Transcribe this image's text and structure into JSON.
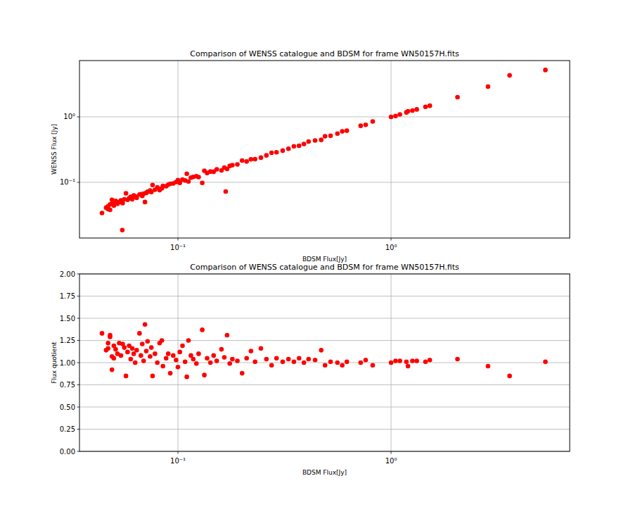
{
  "chart_data": [
    {
      "type": "scatter",
      "title": "Comparison of WENSS catalogue and BDSM for frame WN50157H.fits",
      "x_label": "BDSM Flux[Jy]",
      "y_label": "WENSS Flux [Jy]",
      "log": true,
      "grid": true,
      "color": "#ff0000",
      "marker": "circle",
      "xlim": [
        0.0345,
        6.89
      ],
      "ylim": [
        0.0141,
        7.25
      ],
      "xticks": [
        {
          "value": 0.1,
          "label": "10⁻¹"
        },
        {
          "value": 1,
          "label": "10⁰"
        }
      ],
      "yticks": [
        {
          "value": 0.1,
          "label": "10⁻¹"
        },
        {
          "value": 1,
          "label": "10⁰"
        }
      ],
      "x": [
        0.044,
        0.046,
        0.047,
        0.047,
        0.048,
        0.048,
        0.049,
        0.049,
        0.05,
        0.05,
        0.051,
        0.052,
        0.053,
        0.054,
        0.0548,
        0.055,
        0.056,
        0.057,
        0.058,
        0.059,
        0.06,
        0.061,
        0.062,
        0.063,
        0.064,
        0.066,
        0.067,
        0.068,
        0.069,
        0.07,
        0.071,
        0.072,
        0.074,
        0.075,
        0.076,
        0.078,
        0.08,
        0.082,
        0.084,
        0.085,
        0.088,
        0.09,
        0.092,
        0.095,
        0.098,
        0.1,
        0.102,
        0.105,
        0.108,
        0.11,
        0.112,
        0.115,
        0.118,
        0.122,
        0.125,
        0.13,
        0.133,
        0.137,
        0.142,
        0.147,
        0.152,
        0.16,
        0.165,
        0.1675,
        0.17,
        0.175,
        0.18,
        0.19,
        0.2,
        0.21,
        0.22,
        0.23,
        0.245,
        0.26,
        0.275,
        0.29,
        0.31,
        0.33,
        0.35,
        0.37,
        0.39,
        0.41,
        0.44,
        0.47,
        0.49,
        0.52,
        0.56,
        0.59,
        0.62,
        0.72,
        0.76,
        0.82,
        1.0,
        1.05,
        1.1,
        1.18,
        1.2,
        1.26,
        1.32,
        1.45,
        1.52,
        2.05,
        2.85,
        3.6,
        5.3
      ],
      "values": [
        0.034,
        0.041,
        0.043,
        0.039,
        0.046,
        0.038,
        0.054,
        0.047,
        0.049,
        0.044,
        0.052,
        0.047,
        0.05,
        0.053,
        0.0186,
        0.048,
        0.055,
        0.068,
        0.054,
        0.057,
        0.06,
        0.055,
        0.063,
        0.061,
        0.058,
        0.065,
        0.066,
        0.062,
        0.067,
        0.05,
        0.069,
        0.072,
        0.075,
        0.071,
        0.091,
        0.077,
        0.084,
        0.076,
        0.081,
        0.088,
        0.087,
        0.092,
        0.095,
        0.096,
        0.101,
        0.108,
        0.098,
        0.11,
        0.107,
        0.135,
        0.103,
        0.118,
        0.121,
        0.124,
        0.12,
        0.098,
        0.15,
        0.139,
        0.146,
        0.145,
        0.158,
        0.152,
        0.168,
        0.0724,
        0.16,
        0.178,
        0.183,
        0.188,
        0.215,
        0.208,
        0.225,
        0.226,
        0.238,
        0.258,
        0.282,
        0.288,
        0.305,
        0.326,
        0.355,
        0.362,
        0.385,
        0.42,
        0.435,
        0.445,
        0.505,
        0.515,
        0.555,
        0.6,
        0.615,
        0.73,
        0.755,
        0.85,
        1.0,
        1.03,
        1.09,
        1.17,
        1.22,
        1.25,
        1.3,
        1.42,
        1.48,
        2.0,
        2.9,
        4.3,
        5.2
      ]
    },
    {
      "type": "scatter",
      "title": "Comparison of WENSS catalogue and BDSM for frame WN50157H.fits",
      "x_label": "BDSM Flux[Jy]",
      "y_label": "Flux quotient",
      "log": "x",
      "grid": true,
      "color": "#ff0000",
      "marker": "circle",
      "xlim": [
        0.0345,
        6.89
      ],
      "ylim": [
        0,
        2
      ],
      "xticks": [
        {
          "value": 0.1,
          "label": "10⁻¹"
        },
        {
          "value": 1,
          "label": "10⁰"
        }
      ],
      "yticks": [
        {
          "value": 0,
          "label": "0.00"
        },
        0.25,
        {
          "value": 0.5,
          "label": "0.50"
        },
        0.75,
        {
          "value": 1,
          "label": "1.00"
        },
        1.25,
        {
          "value": 1.5,
          "label": "1.50"
        },
        1.75,
        {
          "value": 2,
          "label": "2.00"
        }
      ],
      "x": [
        0.044,
        0.046,
        0.047,
        0.047,
        0.048,
        0.048,
        0.049,
        0.049,
        0.05,
        0.05,
        0.051,
        0.052,
        0.053,
        0.054,
        0.055,
        0.056,
        0.057,
        0.058,
        0.059,
        0.06,
        0.061,
        0.062,
        0.063,
        0.064,
        0.066,
        0.067,
        0.068,
        0.069,
        0.07,
        0.071,
        0.072,
        0.074,
        0.075,
        0.076,
        0.078,
        0.08,
        0.082,
        0.084,
        0.085,
        0.088,
        0.09,
        0.092,
        0.095,
        0.098,
        0.1,
        0.102,
        0.105,
        0.108,
        0.11,
        0.112,
        0.115,
        0.118,
        0.122,
        0.125,
        0.13,
        0.133,
        0.137,
        0.142,
        0.147,
        0.152,
        0.16,
        0.165,
        0.17,
        0.175,
        0.18,
        0.19,
        0.2,
        0.21,
        0.22,
        0.23,
        0.245,
        0.26,
        0.275,
        0.29,
        0.31,
        0.33,
        0.35,
        0.37,
        0.39,
        0.41,
        0.44,
        0.47,
        0.49,
        0.52,
        0.56,
        0.59,
        0.62,
        0.72,
        0.76,
        0.82,
        1.0,
        1.05,
        1.1,
        1.18,
        1.2,
        1.26,
        1.32,
        1.45,
        1.52,
        2.05,
        2.85,
        3.6,
        5.3
      ],
      "values": [
        1.33,
        1.14,
        1.22,
        1.16,
        1.31,
        1.29,
        0.92,
        1.07,
        1.19,
        1.05,
        1.15,
        1.1,
        1.22,
        1.08,
        1.21,
        1.17,
        0.85,
        1.12,
        1.19,
        1.04,
        1.16,
        1.1,
        1.0,
        1.14,
        1.33,
        1.08,
        1.21,
        1.02,
        1.43,
        1.13,
        1.24,
        1.07,
        1.17,
        0.85,
        1.1,
        1.0,
        1.22,
        1.25,
        0.96,
        1.05,
        1.1,
        0.88,
        1.08,
        1.03,
        0.95,
        1.12,
        1.19,
        1.01,
        0.84,
        1.25,
        1.08,
        1.04,
        0.99,
        1.1,
        1.37,
        0.86,
        1.05,
        1.0,
        1.08,
        1.02,
        1.15,
        1.06,
        1.31,
        0.99,
        1.04,
        1.02,
        0.88,
        1.05,
        1.13,
        1.01,
        1.16,
        1.04,
        0.97,
        1.05,
        1.01,
        1.04,
        1.01,
        1.05,
        1.0,
        1.04,
        1.03,
        1.14,
        0.97,
        1.01,
        1.0,
        0.97,
        1.01,
        1.0,
        1.03,
        0.97,
        1.0,
        1.02,
        1.02,
        1.01,
        0.96,
        1.02,
        1.02,
        1.01,
        1.03,
        1.04,
        0.96,
        0.85,
        1.01
      ]
    }
  ]
}
